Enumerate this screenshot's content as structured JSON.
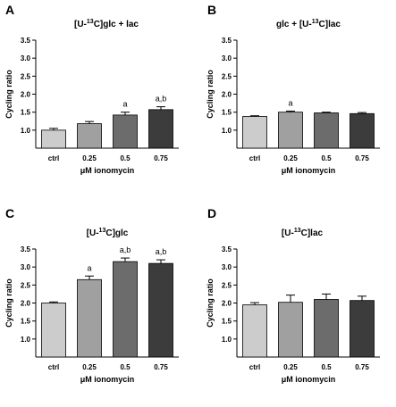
{
  "chart_data": [
    {
      "type": "bar",
      "panel": "A",
      "title": {
        "pre": "[U-",
        "sup": "13",
        "post": "C]glc + lac"
      },
      "categories": [
        "ctrl",
        "0.25",
        "0.5",
        "0.75"
      ],
      "values": [
        1.0,
        1.18,
        1.42,
        1.57
      ],
      "errors": [
        0.05,
        0.06,
        0.08,
        0.08
      ],
      "annotations": [
        "",
        "",
        "a",
        "a,b"
      ],
      "colors": [
        "#cccccc",
        "#a0a0a0",
        "#6c6c6c",
        "#3c3c3c"
      ],
      "xlabel": "μM ionomycin",
      "ylabel": "Cycling ratio",
      "ylim": [
        0.5,
        3.5
      ],
      "yticks": [
        "1.0",
        "1.5",
        "2.0",
        "2.5",
        "3.0",
        "3.5"
      ]
    },
    {
      "type": "bar",
      "panel": "B",
      "title": {
        "pre": "glc + [U-",
        "sup": "13",
        "post": "C]lac"
      },
      "categories": [
        "ctrl",
        "0.25",
        "0.5",
        "0.75"
      ],
      "values": [
        1.38,
        1.5,
        1.48,
        1.46
      ],
      "errors": [
        0.02,
        0.03,
        0.02,
        0.03
      ],
      "annotations": [
        "",
        "a",
        "",
        ""
      ],
      "colors": [
        "#cccccc",
        "#a0a0a0",
        "#6c6c6c",
        "#3c3c3c"
      ],
      "xlabel": "μM ionomycin",
      "ylabel": "Cycling ratio",
      "ylim": [
        0.5,
        3.5
      ],
      "yticks": [
        "1.0",
        "1.5",
        "2.0",
        "2.5",
        "3.0",
        "3.5"
      ]
    },
    {
      "type": "bar",
      "panel": "C",
      "title": {
        "pre": "[U-",
        "sup": "13",
        "post": "C]glc"
      },
      "categories": [
        "ctrl",
        "0.25",
        "0.5",
        "0.75"
      ],
      "values": [
        2.0,
        2.65,
        3.15,
        3.1
      ],
      "errors": [
        0.03,
        0.1,
        0.1,
        0.1
      ],
      "annotations": [
        "",
        "a",
        "a,b",
        "a,b"
      ],
      "colors": [
        "#cccccc",
        "#a0a0a0",
        "#6c6c6c",
        "#3c3c3c"
      ],
      "xlabel": "μM ionomycin",
      "ylabel": "Cycling ratio",
      "ylim": [
        0.5,
        3.5
      ],
      "yticks": [
        "1.0",
        "1.5",
        "2.0",
        "2.5",
        "3.0",
        "3.5"
      ]
    },
    {
      "type": "bar",
      "panel": "D",
      "title": {
        "pre": "[U-",
        "sup": "13",
        "post": "C]lac"
      },
      "categories": [
        "ctrl",
        "0.25",
        "0.5",
        "0.75"
      ],
      "values": [
        1.95,
        2.02,
        2.1,
        2.07
      ],
      "errors": [
        0.06,
        0.2,
        0.15,
        0.12
      ],
      "annotations": [
        "",
        "",
        "",
        ""
      ],
      "colors": [
        "#cccccc",
        "#a0a0a0",
        "#6c6c6c",
        "#3c3c3c"
      ],
      "xlabel": "μM ionomycin",
      "ylabel": "Cycling ratio",
      "ylim": [
        0.5,
        3.5
      ],
      "yticks": [
        "1.0",
        "1.5",
        "2.0",
        "2.5",
        "3.0",
        "3.5"
      ]
    }
  ]
}
